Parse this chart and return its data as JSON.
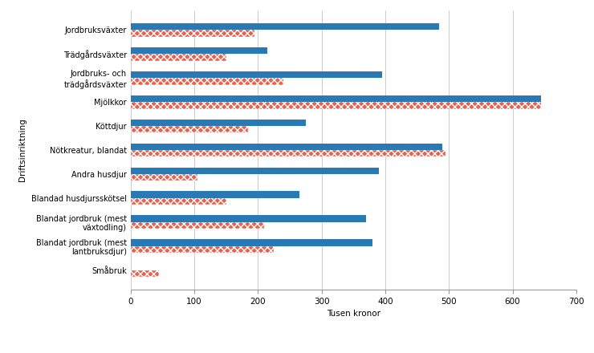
{
  "categories": [
    "Jordbruksväxter",
    "Trädgårdsväxter",
    "Jordbruks- och\nträdgårdsväxter",
    "Mjölkkor",
    "Köttdjur",
    "Nötkreatur, blandat",
    "Andra husdjur",
    "Blandad husdjursskötsel",
    "Blandat jordbruk (mest\nväxtodling)",
    "Blandat jordbruk (mest\nlantbruksdjur)",
    "Småbruk"
  ],
  "samtliga": [
    195,
    150,
    240,
    645,
    185,
    495,
    105,
    150,
    210,
    225,
    45
  ],
  "heltid": [
    485,
    215,
    395,
    645,
    275,
    490,
    390,
    265,
    370,
    380,
    0
  ],
  "color_samtliga": "#e8614d",
  "color_heltid": "#2979b5",
  "xlabel": "Tusen kronor",
  "ylabel": "Driftsinriktning",
  "xlim": [
    0,
    700
  ],
  "xticks": [
    0,
    100,
    200,
    300,
    400,
    500,
    600,
    700
  ],
  "bar_height": 0.28,
  "figure_width": 7.4,
  "figure_height": 4.4,
  "dpi": 100
}
